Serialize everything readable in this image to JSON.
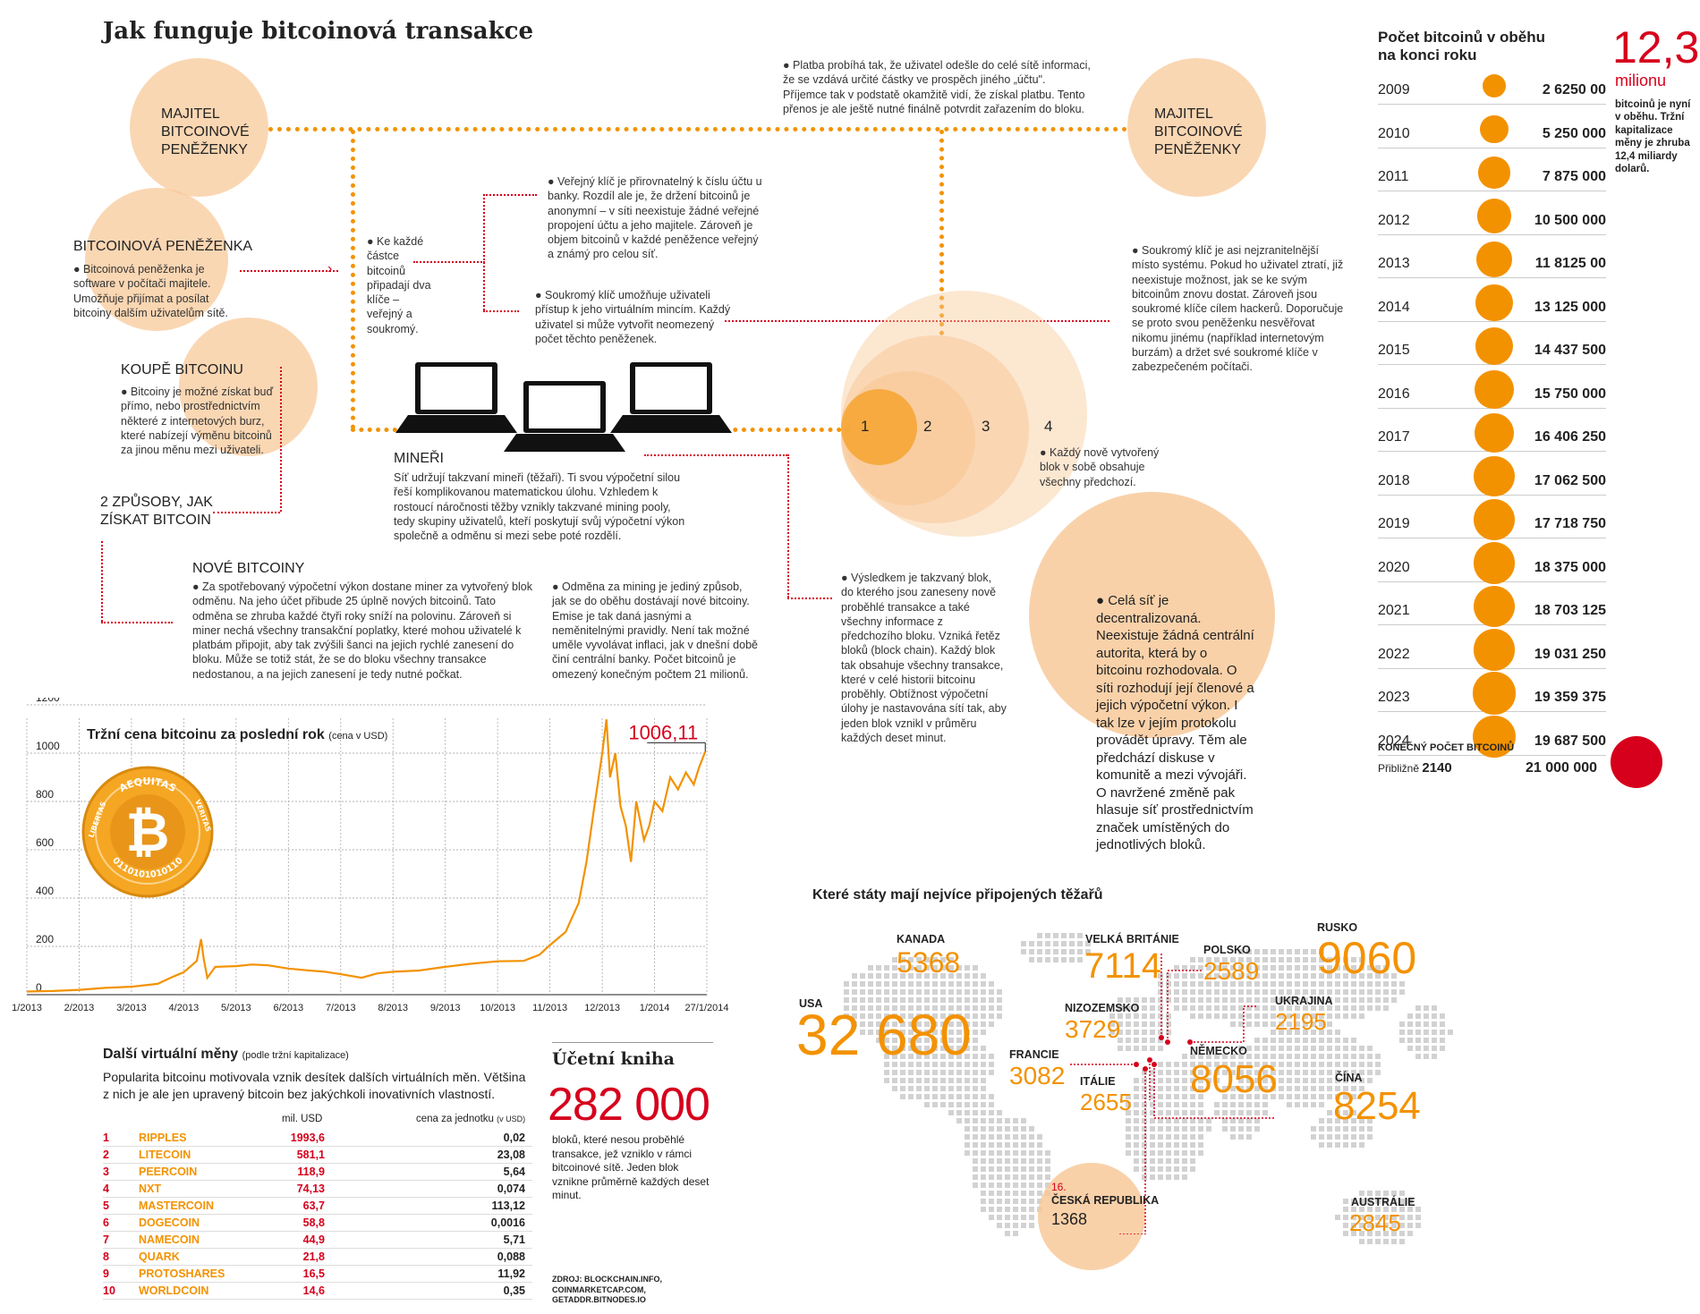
{
  "title": "Jak funguje bitcoinová transakce",
  "flow": {
    "owner_left": "MAJITEL BITCOINOVÉ PENĚŽENKY",
    "owner_right": "MAJITEL BITCOINOVÉ PENĚŽENKY",
    "payment_text": "● Platba probíhá tak, že uživatel odešle do celé sítě informaci, že se vzdává určité částky ve prospěch jiného „účtu\". Příjemce tak v podstatě okamžitě vidí, že získal platbu. Tento přenos je ale ještě nutné finálně potvrdit zařazením do bloku.",
    "wallet_title": "BITCOINOVÁ PENĚŽENKA",
    "wallet_text": "● Bitcoinová peněženka je software v počítači majitele. Umožňuje přijímat a posílat bitcoiny dalším uživatelům sítě.",
    "keys_text": "● Ke každé částce bitcoinů připadají dva klíče – veřejný a soukromý.",
    "public_key_text": "● Veřejný klíč je přirovnatelný k číslu účtu u banky. Rozdíl ale je, že držení bitcoinů je anonymní – v síti neexistuje žádné veřejné propojení účtu a jeho majitele. Zároveň je objem bitcoinů v každé peněžence veřejný a známý pro celou síť.",
    "private_key_text": "● Soukromý klíč umožňuje uživateli přístup k jeho virtuálním mincím. Každý uživatel si může vytvořit neomezený počet těchto peněženek.",
    "private_key_right_text": "● Soukromý klíč je asi nejzranitelnější místo systému. Pokud ho uživatel ztratí, již neexistuje možnost, jak se ke svým bitcoinům znovu dostat. Zároveň jsou soukromé klíče cílem hackerů. Doporučuje se proto svou peněženku nesvěřovat nikomu jinému (například internetovým burzám) a držet své soukromé klíče v zabezpečeném počítači.",
    "buy_title": "KOUPĚ BITCOINU",
    "buy_text": "● Bitcoiny je možné získat buď přímo, nebo prostřednictvím některé z internetových burz, které nabízejí výměnu bitcoinů za jinou měnu mezi uživateli.",
    "two_ways": "2 ZPŮSOBY, JAK ZÍSKAT BITCOIN",
    "miners_title": "MINEŘI",
    "miners_text": "Síť udržují takzvaní mineři (těžaři). Ti svou výpočetní silou řeší komplikovanou matematickou úlohu. Vzhledem k rostoucí náročnosti těžby vznikly takzvané mining pooly, tedy skupiny uživatelů, kteří poskytují svůj výpočetní výkon společně a odměnu si mezi sebe poté rozdělí.",
    "new_title": "NOVÉ BITCOINY",
    "new_text": "● Za spotřebovaný výpočetní výkon dostane miner za vytvořený blok odměnu. Na jeho účet přibude 25 úplně nových bitcoinů. Tato odměna se zhruba každé čtyři roky sníží na polovinu. Zároveň si miner nechá všechny transakční poplatky, které mohou uživatelé k platbám připojit, aby tak zvýšili šanci na jejich rychlé zanesení do bloku. Může se totiž stát, že se do bloku všechny transakce nedostanou, a na jejich zanesení je tedy nutné počkat.",
    "reward_text": "● Odměna za mining je jediný způsob, jak se do oběhu dostávají nové bitcoiny. Emise je tak daná jasnými a neměnitelnými pravidly. Není tak možné uměle vyvolávat inflaci, jak v dnešní době činí centrální banky. Počet bitcoinů je omezený konečným počtem 21 milionů.",
    "blocks": [
      "1",
      "2",
      "3",
      "4"
    ],
    "blocks_text": "● Každý nově vytvořený blok v sobě obsahuje všechny předchozí.",
    "result_text": "● Výsledkem je takzvaný blok, do kterého jsou zaneseny nově proběhlé transakce a také všechny informace z předchozího bloku. Vzniká řetěz bloků (block chain). Každý blok tak obsahuje všechny transakce, které v celé historii bitcoinu proběhly. Obtížnost výpočetní úlohy je nastavována sítí tak, aby jeden blok vznikl v průměru každých deset minut.",
    "decentral_text": "● Celá síť je decentralizovaná. Neexistuje žádná centrální autorita, která by o bitcoinu rozhodovala. O síti rozhodují její členové a jejich výpočetní výkon. I tak lze v jejím protokolu provádět úpravy. Těm ale předchází diskuse v komunitě a mezi vývojáři. O navržené změně pak hlasuje síť prostřednictvím značek umístěných do jednotlivých bloků."
  },
  "circulation": {
    "title": "Počet bitcoinů v oběhu na konci roku",
    "big_number": "12,3",
    "big_unit": "milionu",
    "note": "bitcoinů je nyní v oběhu. Tržní kapitalizace měny je zhruba 12,4 miliardy dolarů.",
    "rows": [
      {
        "year": "2009",
        "value": "2 6250 00",
        "n": 2625000
      },
      {
        "year": "2010",
        "value": "5 250 000",
        "n": 5250000
      },
      {
        "year": "2011",
        "value": "7 875 000",
        "n": 7875000
      },
      {
        "year": "2012",
        "value": "10 500 000",
        "n": 10500000
      },
      {
        "year": "2013",
        "value": "11 8125 00",
        "n": 11812500
      },
      {
        "year": "2014",
        "value": "13 125 000",
        "n": 13125000
      },
      {
        "year": "2015",
        "value": "14 437 500",
        "n": 14437500
      },
      {
        "year": "2016",
        "value": "15 750 000",
        "n": 15750000
      },
      {
        "year": "2017",
        "value": "16 406 250",
        "n": 16406250
      },
      {
        "year": "2018",
        "value": "17 062 500",
        "n": 17062500
      },
      {
        "year": "2019",
        "value": "17 718 750",
        "n": 17718750
      },
      {
        "year": "2020",
        "value": "18 375 000",
        "n": 18375000
      },
      {
        "year": "2021",
        "value": "18 703 125",
        "n": 18703125
      },
      {
        "year": "2022",
        "value": "19 031 250",
        "n": 19031250
      },
      {
        "year": "2023",
        "value": "19 359 375",
        "n": 19359375
      },
      {
        "year": "2024",
        "value": "19 687 500",
        "n": 19687500
      }
    ],
    "final_label": "KONEČNÝ POČET BITCOINŮ",
    "final_approx": "Přibližně",
    "final_year": "2140",
    "final_value": "21 000 000",
    "accent": "#f39200",
    "final_color": "#d6001c"
  },
  "price_chart": {
    "title": "Tržní cena bitcoinu za poslední rok",
    "subtitle": "(cena v USD)",
    "last_label": "1006,11",
    "coin_top": "AEQUITAS",
    "coin_left": "LIBERTAS",
    "coin_right": "VERITAS",
    "coin_bottom": "0110101010110",
    "ytick_labels": [
      "1200",
      "1000",
      "800",
      "600",
      "400",
      "200",
      "0"
    ],
    "xtick_labels": [
      "1/2013",
      "2/2013",
      "3/2013",
      "4/2013",
      "5/2013",
      "6/2013",
      "7/2013",
      "8/2013",
      "9/2013",
      "10/2013",
      "11/2013",
      "12/2013",
      "1/2014",
      "27/1/2014"
    ]
  },
  "chart_data": {
    "type": "line",
    "title": "Tržní cena bitcoinu za poslední rok",
    "ylabel": "(cena v USD)",
    "ylim": [
      0,
      1200
    ],
    "x": [
      "1/2013",
      "2/2013",
      "3/2013",
      "4/2013",
      "5/2013",
      "6/2013",
      "7/2013",
      "8/2013",
      "9/2013",
      "10/2013",
      "11/2013",
      "12/2013",
      "1/2014",
      "27/1/2014"
    ],
    "series": [
      {
        "values": [
          [
            0.0,
            13
          ],
          [
            0.5,
            15
          ],
          [
            1.0,
            20
          ],
          [
            1.5,
            28
          ],
          [
            2.0,
            33
          ],
          [
            2.5,
            45
          ],
          [
            2.8,
            75
          ],
          [
            3.0,
            93
          ],
          [
            3.25,
            140
          ],
          [
            3.33,
            230
          ],
          [
            3.38,
            150
          ],
          [
            3.45,
            70
          ],
          [
            3.6,
            115
          ],
          [
            4.0,
            118
          ],
          [
            4.3,
            125
          ],
          [
            4.6,
            122
          ],
          [
            5.0,
            108
          ],
          [
            5.4,
            100
          ],
          [
            5.7,
            95
          ],
          [
            6.0,
            85
          ],
          [
            6.4,
            70
          ],
          [
            6.7,
            88
          ],
          [
            7.0,
            95
          ],
          [
            7.5,
            100
          ],
          [
            8.0,
            115
          ],
          [
            8.5,
            128
          ],
          [
            9.0,
            138
          ],
          [
            9.5,
            140
          ],
          [
            9.8,
            165
          ],
          [
            10.0,
            205
          ],
          [
            10.3,
            260
          ],
          [
            10.55,
            380
          ],
          [
            10.7,
            550
          ],
          [
            10.85,
            780
          ],
          [
            11.0,
            1000
          ],
          [
            11.08,
            1140
          ],
          [
            11.15,
            900
          ],
          [
            11.25,
            1000
          ],
          [
            11.35,
            780
          ],
          [
            11.45,
            700
          ],
          [
            11.55,
            550
          ],
          [
            11.65,
            800
          ],
          [
            11.8,
            640
          ],
          [
            11.9,
            700
          ],
          [
            12.0,
            800
          ],
          [
            12.15,
            760
          ],
          [
            12.3,
            900
          ],
          [
            12.45,
            850
          ],
          [
            12.6,
            920
          ],
          [
            12.75,
            870
          ],
          [
            12.85,
            940
          ],
          [
            12.97,
            1006.11
          ]
        ]
      }
    ]
  },
  "currencies": {
    "title": "Další virtuální měny",
    "subtitle": "(podle tržní kapitalizace)",
    "intro": "Popularita bitcoinu motivovala vznik desítek dalších virtuálních měn. Většina z nich je ale jen upravený bitcoin bez jakýchkoli inovativních vlastností.",
    "col_cap": "mil. USD",
    "col_price": "cena za jednotku",
    "col_price_unit": "(v USD)",
    "rows": [
      {
        "rank": "1",
        "name": "RIPPLES",
        "cap": "1993,6",
        "price": "0,02"
      },
      {
        "rank": "2",
        "name": "LITECOIN",
        "cap": "581,1",
        "price": "23,08"
      },
      {
        "rank": "3",
        "name": "PEERCOIN",
        "cap": "118,9",
        "price": "5,64"
      },
      {
        "rank": "4",
        "name": "NXT",
        "cap": "74,13",
        "price": "0,074"
      },
      {
        "rank": "5",
        "name": "MASTERCOIN",
        "cap": "63,7",
        "price": "113,12"
      },
      {
        "rank": "6",
        "name": "DOGECOIN",
        "cap": "58,8",
        "price": "0,0016"
      },
      {
        "rank": "7",
        "name": "NAMECOIN",
        "cap": "44,9",
        "price": "5,71"
      },
      {
        "rank": "8",
        "name": "QUARK",
        "cap": "21,8",
        "price": "0,088"
      },
      {
        "rank": "9",
        "name": "PROTOSHARES",
        "cap": "16,5",
        "price": "11,92"
      },
      {
        "rank": "10",
        "name": "WORLDCOIN",
        "cap": "14,6",
        "price": "0,35"
      }
    ]
  },
  "ledger": {
    "title": "Účetní kniha",
    "number": "282 000",
    "text": "bloků, které nesou proběhlé transakce, jež vzniklo v rámci bitcoinové sítě. Jeden blok vznikne průměrně každých deset minut.",
    "source": "ZDROJ: BLOCKCHAIN.INFO, COINMARKETCAP.COM, GETADDR.BITNODES.IO"
  },
  "map": {
    "title": "Které státy mají nejvíce připojených těžařů",
    "countries": [
      {
        "key": "usa",
        "name": "USA",
        "value": "32 680"
      },
      {
        "key": "canada",
        "name": "KANADA",
        "value": "5368"
      },
      {
        "key": "uk",
        "name": "VELKÁ BRITÁNIE",
        "value": "7114"
      },
      {
        "key": "poland",
        "name": "POLSKO",
        "value": "2589"
      },
      {
        "key": "russia",
        "name": "RUSKO",
        "value": "9060"
      },
      {
        "key": "netherlands",
        "name": "NIZOZEMSKO",
        "value": "3729"
      },
      {
        "key": "ukraine",
        "name": "UKRAJINA",
        "value": "2195"
      },
      {
        "key": "france",
        "name": "FRANCIE",
        "value": "3082"
      },
      {
        "key": "italy",
        "name": "ITÁLIE",
        "value": "2655"
      },
      {
        "key": "germany",
        "name": "NĚMECKO",
        "value": "8056"
      },
      {
        "key": "china",
        "name": "ČÍNA",
        "value": "8254"
      },
      {
        "key": "australia",
        "name": "AUSTRÁLIE",
        "value": "2845"
      },
      {
        "key": "czech",
        "name": "ČESKÁ REPUBLIKA",
        "value": "1368",
        "rank": "16."
      }
    ]
  }
}
